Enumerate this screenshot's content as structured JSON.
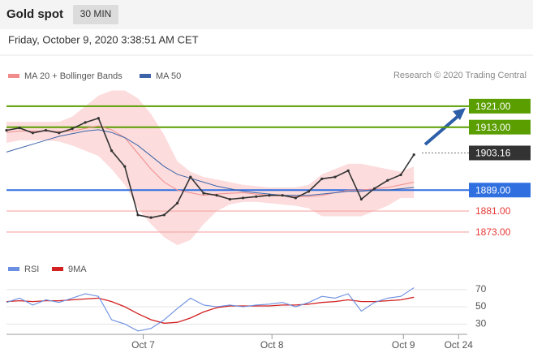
{
  "header": {
    "title": "Gold spot",
    "interval": "30 MIN"
  },
  "timestamp": "Friday, October 9, 2020 3:38:51 AM CET",
  "credit": "Research © 2020 Trading Central",
  "chart_data": [
    {
      "type": "line",
      "x": [
        0,
        1,
        2,
        3,
        4,
        5,
        6,
        7,
        8,
        9,
        10,
        11,
        12,
        13,
        14,
        15,
        16,
        17,
        18,
        19,
        20,
        21,
        22,
        23,
        24,
        25,
        26,
        27,
        28,
        29,
        30,
        31
      ],
      "values": [
        1911.8,
        1912.7,
        1910.8,
        1911.8,
        1910.8,
        1912.4,
        1914.8,
        1916.4,
        1904,
        1898,
        1879.5,
        1878.5,
        1879.5,
        1884,
        1894,
        1887.8,
        1887,
        1885.5,
        1886,
        1886.5,
        1887,
        1887,
        1886,
        1888.5,
        1893.3,
        1894,
        1896.4,
        1885.5,
        1889.6,
        1892.7,
        1894.8,
        1902.5
      ],
      "color": "#333333",
      "series": [
        {
          "name": "MA 20 + Bollinger Bands",
          "color": "#f08c8c",
          "band_color": "#fcdcdc",
          "values": [
            1911,
            1911.5,
            1911.5,
            1911.5,
            1911.3,
            1911.5,
            1912.5,
            1913.5,
            1912,
            1909,
            1903,
            1897,
            1892,
            1889,
            1888,
            1887,
            1887.5,
            1887.8,
            1888,
            1887.5,
            1887,
            1886.8,
            1886.5,
            1886.5,
            1887,
            1888,
            1889,
            1889,
            1889.5,
            1890,
            1891,
            1892
          ],
          "upper": [
            1915,
            1915,
            1915,
            1915,
            1915,
            1917,
            1921,
            1925,
            1927,
            1927,
            1924,
            1918,
            1910,
            1900,
            1896,
            1894,
            1893,
            1892,
            1891,
            1890.5,
            1890,
            1890,
            1890,
            1891,
            1895,
            1897,
            1899,
            1899,
            1898,
            1897,
            1896,
            1898
          ],
          "lower": [
            1907,
            1908,
            1908,
            1908,
            1907.5,
            1906,
            1904,
            1902,
            1897,
            1891,
            1882,
            1876,
            1871,
            1868,
            1870,
            1876,
            1881,
            1883.5,
            1884.5,
            1884.5,
            1884,
            1883.5,
            1883,
            1882,
            1879,
            1879,
            1879,
            1879,
            1881,
            1883,
            1886,
            1886
          ]
        },
        {
          "name": "MA 50",
          "color": "#3d64a8",
          "values": [
            1903.5,
            1905,
            1906.5,
            1908,
            1909.5,
            1910.5,
            1911.5,
            1912,
            1911,
            1909,
            1906,
            1902,
            1898,
            1895,
            1893.5,
            1892,
            1890.5,
            1889.5,
            1888.5,
            1888,
            1887.5,
            1887,
            1887,
            1887,
            1887.5,
            1888,
            1888.5,
            1888.5,
            1889,
            1889,
            1889.5,
            1890
          ]
        }
      ],
      "levels": [
        {
          "value": 1921,
          "label": "1921.00",
          "color": "#5a9e00",
          "style": "box"
        },
        {
          "value": 1913,
          "label": "1913.00",
          "color": "#5a9e00",
          "style": "box"
        },
        {
          "value": 1903.16,
          "label": "1903.16",
          "color": "#333333",
          "style": "last"
        },
        {
          "value": 1889,
          "label": "1889.00",
          "color": "#2f6fe0",
          "style": "box"
        },
        {
          "value": 1881,
          "label": "1881.00",
          "color": "#e53935",
          "style": "text"
        },
        {
          "value": 1873,
          "label": "1873.00",
          "color": "#e53935",
          "style": "text"
        }
      ],
      "xlim": [
        0,
        35
      ],
      "ylim": [
        1864,
        1929
      ]
    },
    {
      "type": "line",
      "x": [
        0,
        1,
        2,
        3,
        4,
        5,
        6,
        7,
        8,
        9,
        10,
        11,
        12,
        13,
        14,
        15,
        16,
        17,
        18,
        19,
        20,
        21,
        22,
        23,
        24,
        25,
        26,
        27,
        28,
        29,
        30,
        31
      ],
      "series": [
        {
          "name": "RSI",
          "color": "#6a8ee0",
          "values": [
            55,
            60,
            52,
            58,
            55,
            60,
            65,
            62,
            35,
            30,
            22,
            25,
            35,
            48,
            60,
            52,
            50,
            52,
            50,
            52,
            53,
            55,
            50,
            55,
            62,
            60,
            65,
            45,
            55,
            60,
            62,
            72
          ]
        },
        {
          "name": "9MA",
          "color": "#d32020",
          "values": [
            56,
            57,
            56,
            57,
            57,
            58,
            59,
            60,
            56,
            50,
            42,
            35,
            31,
            32,
            37,
            44,
            49,
            51,
            51,
            51,
            51,
            52,
            52,
            53,
            55,
            56,
            58,
            56,
            56,
            57,
            58,
            61
          ]
        }
      ],
      "xlim": [
        0,
        35
      ],
      "ylim": [
        20,
        81
      ],
      "yticks": [
        70,
        50,
        30
      ],
      "xticks": [
        {
          "value": 10.4,
          "label": "Oct 7"
        },
        {
          "value": 20.2,
          "label": "Oct 8"
        },
        {
          "value": 30.2,
          "label": "Oct 9"
        },
        {
          "value": 34.4,
          "label": "Oct 24"
        }
      ]
    }
  ]
}
